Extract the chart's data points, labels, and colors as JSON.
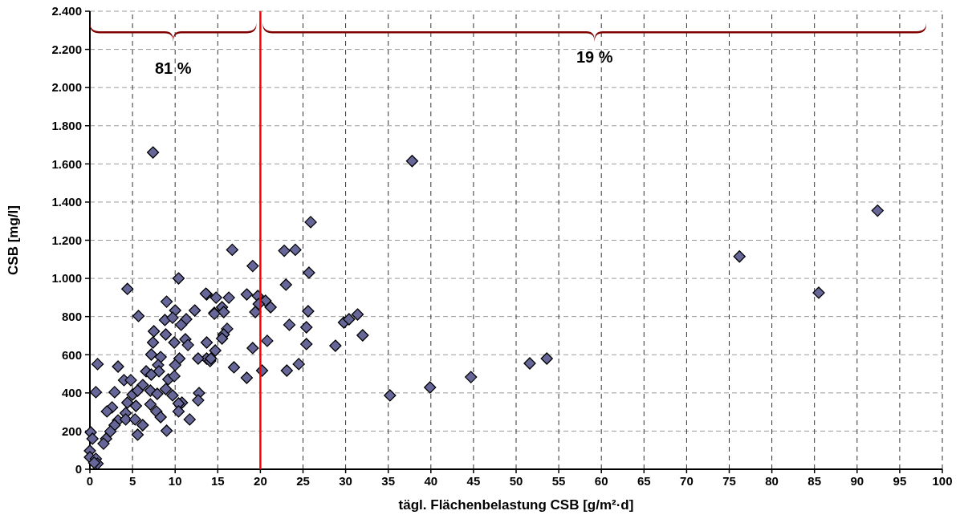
{
  "chart_data": {
    "type": "scatter",
    "xlabel": "tägl. Flächenbelastung CSB [g/m²·d]",
    "ylabel": "CSB [mg/l]",
    "xlim": [
      0,
      100
    ],
    "xticks": [
      0,
      5,
      10,
      15,
      20,
      25,
      30,
      35,
      40,
      45,
      50,
      55,
      60,
      65,
      70,
      75,
      80,
      85,
      90,
      95,
      100
    ],
    "ylim": [
      0,
      2400
    ],
    "yticks": [
      0,
      200,
      400,
      600,
      800,
      {
        "value": 1000,
        "label": "1.000"
      },
      {
        "value": 1200,
        "label": "1.200"
      },
      {
        "value": 1400,
        "label": "1.400"
      },
      {
        "value": 1600,
        "label": "1.600"
      },
      {
        "value": 1800,
        "label": "1.800"
      },
      {
        "value": 2000,
        "label": "2.000"
      },
      {
        "value": 2200,
        "label": "2.200"
      },
      {
        "value": 2400,
        "label": "2.400"
      }
    ],
    "grid": true,
    "marker": "diamond",
    "ref_lines": [
      {
        "axis": "x",
        "value": 20,
        "color": "#ff0000"
      }
    ],
    "annotations": [
      "81 %",
      "19 %"
    ],
    "series": [
      {
        "color": "#666699",
        "x": [
          7.4,
          37.8,
          92.4,
          76.2,
          85.5,
          25.9,
          16.7,
          19.1,
          22.8,
          24.1,
          25.7,
          23.0,
          13.7,
          14.8,
          16.3,
          18.4,
          19.7,
          20.6,
          21.2,
          19.8,
          19.4,
          15.5,
          14.6,
          15.7,
          25.6,
          23.4,
          25.4,
          29.8,
          30.4,
          31.4,
          32.0,
          28.8,
          25.4,
          20.8,
          19.1,
          16.1,
          15.7,
          15.5,
          13.7,
          14.7,
          13.7,
          14.1,
          16.9,
          18.4,
          20.2,
          23.1,
          24.5,
          35.2,
          39.9,
          44.7,
          51.6,
          53.6,
          10.4,
          4.4,
          13.6,
          9.0,
          10.0,
          12.3,
          5.7,
          8.8,
          9.7,
          11.3,
          10.7,
          14.6,
          7.5,
          8.9,
          11.2,
          7.4,
          9.9,
          11.5,
          7.2,
          12.7,
          10.5,
          8.3,
          14.2,
          0.9,
          3.3,
          8.0,
          10.0,
          6.6,
          8.1,
          4.0,
          4.8,
          7.2,
          9.2,
          9.9,
          6.2,
          7.1,
          0.7,
          2.9,
          5.0,
          7.9,
          5.6,
          8.9,
          9.7,
          12.8,
          4.4,
          5.4,
          7.1,
          10.8,
          12.7,
          10.4,
          2.6,
          2.0,
          4.2,
          7.8,
          3.3,
          4.2,
          5.3,
          8.3,
          10.4,
          6.2,
          11.7,
          2.9,
          2.4,
          1.9,
          1.6,
          5.6,
          9.0,
          0.1,
          0.3,
          0.0,
          0.0,
          0.7,
          0.9,
          0.5
        ],
        "values": [
          1660,
          1615,
          1355,
          1115,
          925,
          1295,
          1150,
          1065,
          1145,
          1150,
          1030,
          967,
          916,
          899,
          899,
          916,
          908,
          883,
          849,
          866,
          824,
          849,
          820,
          824,
          828,
          757,
          744,
          769,
          786,
          811,
          702,
          647,
          656,
          673,
          635,
          736,
          706,
          685,
          664,
          622,
          580,
          567,
          534,
          479,
          517,
          517,
          551,
          387,
          429,
          483,
          555,
          580,
          1000,
          945,
          920,
          878,
          832,
          832,
          803,
          782,
          794,
          786,
          757,
          815,
          723,
          706,
          681,
          664,
          664,
          651,
          601,
          580,
          580,
          588,
          580,
          551,
          538,
          546,
          546,
          513,
          513,
          467,
          467,
          496,
          471,
          488,
          441,
          412,
          404,
          404,
          391,
          395,
          412,
          420,
          387,
          399,
          349,
          332,
          340,
          349,
          361,
          345,
          324,
          303,
          294,
          303,
          256,
          261,
          261,
          273,
          303,
          231,
          261,
          231,
          198,
          160,
          134,
          181,
          202,
          193,
          160,
          97,
          63,
          55,
          29,
          34
        ]
      }
    ]
  }
}
